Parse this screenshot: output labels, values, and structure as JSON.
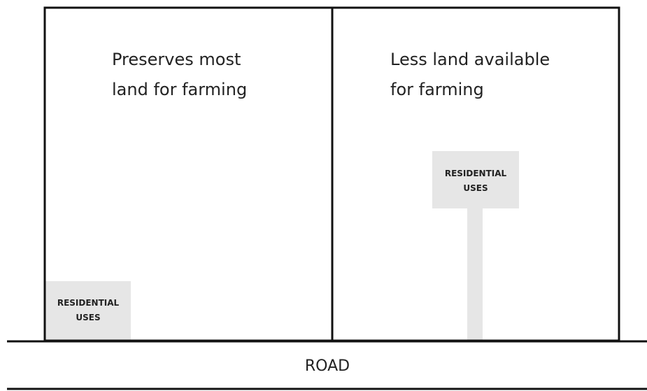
{
  "left_parcel": {
    "caption": [
      "Preserves most",
      "land for farming"
    ],
    "residential_label": [
      "RESIDENTIAL",
      "USES"
    ]
  },
  "right_parcel": {
    "caption": [
      "Less land available",
      "for farming"
    ],
    "residential_label": [
      "RESIDENTIAL",
      "USES"
    ]
  },
  "road": {
    "label": "ROAD"
  }
}
